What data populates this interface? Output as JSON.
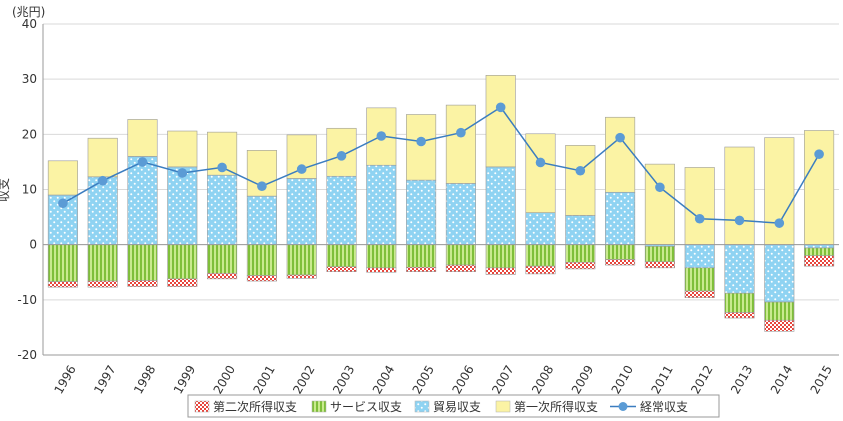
{
  "chart_data": {
    "type": "bar",
    "stacked": true,
    "unit": "(兆円)",
    "ylabel": "収支",
    "xlabel": "",
    "ylim": [
      -20,
      40
    ],
    "yticks": [
      -20,
      -10,
      0,
      10,
      20,
      30,
      40
    ],
    "grid": true,
    "legend_position": "bottom",
    "categories": [
      "1996",
      "1997",
      "1998",
      "1999",
      "2000",
      "2001",
      "2002",
      "2003",
      "2004",
      "2005",
      "2006",
      "2007",
      "2008",
      "2009",
      "2010",
      "2011",
      "2012",
      "2013",
      "2014",
      "2015"
    ],
    "series": [
      {
        "name": "第二次所得収支",
        "kind": "bar",
        "color": "#e8453c",
        "values": [
          -1.0,
          -1.1,
          -1.1,
          -1.4,
          -1.0,
          -1.0,
          -0.6,
          -0.9,
          -0.8,
          -0.8,
          -1.2,
          -1.2,
          -1.4,
          -1.2,
          -1.0,
          -1.1,
          -1.2,
          -1.0,
          -2.0,
          -1.9
        ]
      },
      {
        "name": "サービス収支",
        "kind": "bar",
        "color": "#a8d86e",
        "values": [
          -6.7,
          -6.6,
          -6.5,
          -6.2,
          -5.2,
          -5.6,
          -5.5,
          -4.0,
          -4.2,
          -4.1,
          -3.7,
          -4.2,
          -3.9,
          -3.2,
          -2.7,
          -2.8,
          -4.2,
          -3.5,
          -3.3,
          -1.4
        ]
      },
      {
        "name": "貿易収支",
        "kind": "bar",
        "color": "#8fd3f2",
        "values": [
          9.0,
          12.3,
          16.0,
          14.1,
          12.6,
          8.8,
          12.0,
          12.4,
          14.4,
          11.7,
          11.1,
          14.1,
          5.8,
          5.3,
          9.5,
          -0.3,
          -4.2,
          -8.8,
          -10.4,
          -0.6
        ]
      },
      {
        "name": "第一次所得収支",
        "kind": "bar",
        "color": "#fbf3a4",
        "values": [
          6.2,
          7.0,
          6.7,
          6.5,
          7.8,
          8.3,
          7.9,
          8.7,
          10.4,
          11.9,
          14.2,
          16.6,
          14.3,
          12.7,
          13.6,
          14.6,
          14.0,
          17.7,
          19.4,
          20.7
        ]
      },
      {
        "name": "経常収支",
        "kind": "line",
        "color": "#3b7dc0",
        "marker_color": "#5b9bd5",
        "values": [
          7.5,
          11.6,
          15.0,
          13.0,
          14.0,
          10.6,
          13.7,
          16.1,
          19.7,
          18.7,
          20.3,
          24.9,
          14.9,
          13.4,
          19.4,
          10.4,
          4.7,
          4.4,
          3.9,
          16.4
        ]
      }
    ]
  }
}
